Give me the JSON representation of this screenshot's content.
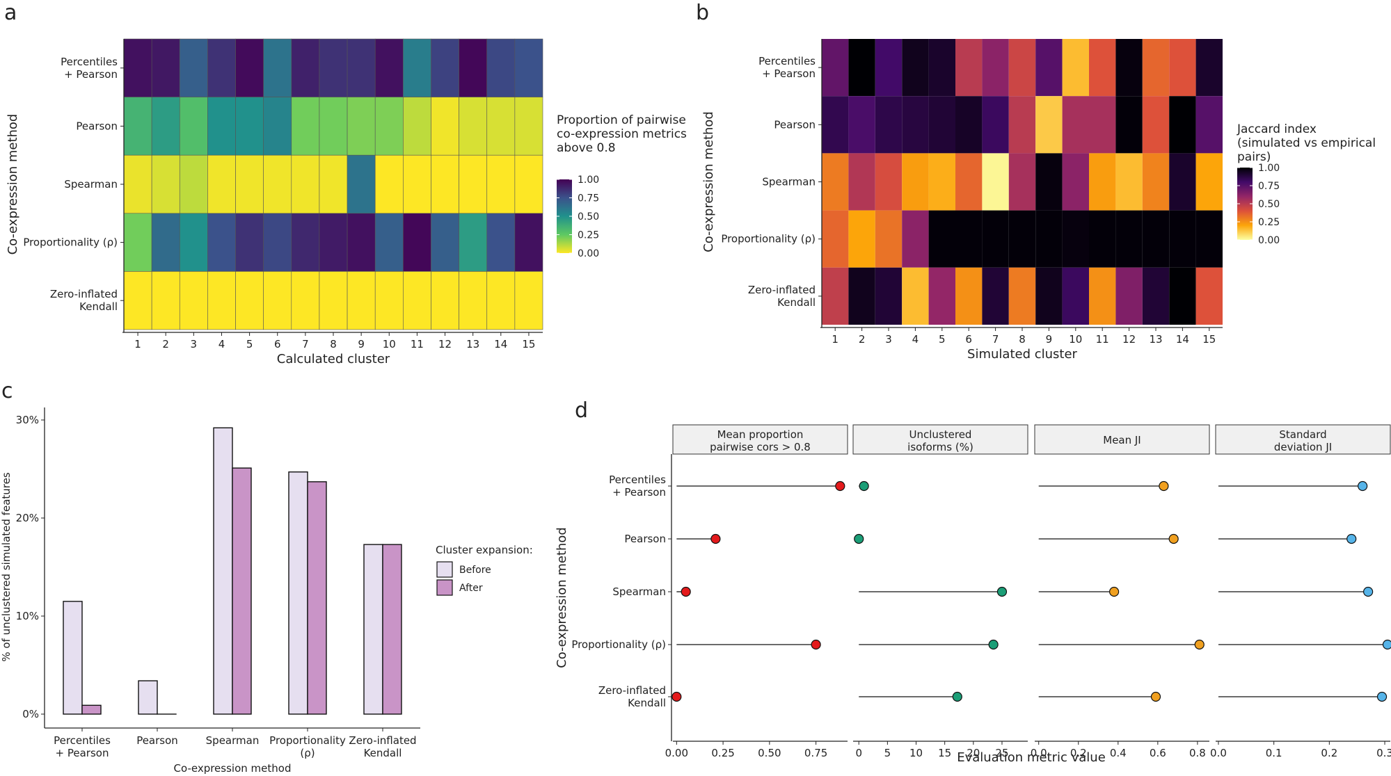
{
  "chart_data": [
    {
      "panel": "a",
      "type": "heatmap",
      "xlabel": "Calculated cluster",
      "ylabel": "Co-expression method",
      "x": [
        "1",
        "2",
        "3",
        "4",
        "5",
        "6",
        "7",
        "8",
        "9",
        "10",
        "11",
        "12",
        "13",
        "14",
        "15"
      ],
      "y": [
        "Percentiles\n+ Pearson",
        "Pearson",
        "Spearman",
        "Proportionality (ρ)",
        "Zero-inflated\nKendall"
      ],
      "values": [
        [
          0.95,
          0.93,
          0.7,
          0.85,
          0.97,
          0.62,
          0.9,
          0.85,
          0.85,
          0.95,
          0.58,
          0.8,
          0.98,
          0.78,
          0.75
        ],
        [
          0.35,
          0.45,
          0.3,
          0.5,
          0.5,
          0.55,
          0.22,
          0.22,
          0.2,
          0.2,
          0.1,
          0.02,
          0.06,
          0.06,
          0.06
        ],
        [
          0.03,
          0.06,
          0.1,
          0.02,
          0.02,
          0.02,
          0.02,
          0.02,
          0.62,
          0.0,
          0.0,
          0.0,
          0.0,
          0.0,
          0.0
        ],
        [
          0.22,
          0.65,
          0.5,
          0.75,
          0.85,
          0.78,
          0.88,
          0.92,
          0.95,
          0.7,
          0.98,
          0.7,
          0.45,
          0.75,
          0.95
        ],
        [
          0.0,
          0.0,
          0.0,
          0.0,
          0.0,
          0.0,
          0.0,
          0.0,
          0.0,
          0.0,
          0.0,
          0.0,
          0.0,
          0.0,
          0.0
        ]
      ],
      "legend": {
        "title": [
          "Proportion of pairwise",
          "co-expression metrics",
          "above 0.8"
        ],
        "ticks": [
          "1.00",
          "0.75",
          "0.50",
          "0.25",
          "0.00"
        ],
        "range": [
          0,
          1
        ],
        "colors": [
          "#fde725",
          "#5ec962",
          "#21918c",
          "#3b528b",
          "#440154"
        ]
      }
    },
    {
      "panel": "b",
      "type": "heatmap",
      "xlabel": "Simulated cluster",
      "ylabel": "Co-expression method",
      "x": [
        "1",
        "2",
        "3",
        "4",
        "5",
        "6",
        "7",
        "8",
        "9",
        "10",
        "11",
        "12",
        "13",
        "14",
        "15"
      ],
      "y": [
        "Percentiles\n+ Pearson",
        "Pearson",
        "Spearman",
        "Proportionality (ρ)",
        "Zero-inflated\nKendall"
      ],
      "values": [
        [
          0.72,
          1.0,
          0.8,
          0.95,
          0.92,
          0.5,
          0.62,
          0.45,
          0.75,
          0.15,
          0.4,
          0.98,
          0.35,
          0.4,
          0.92
        ],
        [
          0.85,
          0.78,
          0.86,
          0.88,
          0.9,
          0.93,
          0.82,
          0.5,
          0.12,
          0.55,
          0.55,
          0.99,
          0.4,
          1.0,
          0.75
        ],
        [
          0.3,
          0.52,
          0.42,
          0.22,
          0.18,
          0.35,
          0.02,
          0.55,
          0.98,
          0.62,
          0.22,
          0.15,
          0.28,
          0.92,
          0.2
        ],
        [
          0.35,
          0.2,
          0.32,
          0.62,
          0.99,
          0.99,
          0.99,
          0.99,
          0.99,
          0.98,
          0.99,
          0.99,
          0.99,
          0.99,
          0.99
        ],
        [
          0.48,
          0.95,
          0.9,
          0.15,
          0.6,
          0.25,
          0.9,
          0.3,
          0.95,
          0.82,
          0.25,
          0.65,
          0.9,
          1.0,
          0.4
        ]
      ],
      "legend": {
        "title": [
          "Jaccard index",
          "(simulated vs empirical",
          "pairs)"
        ],
        "ticks": [
          "1.00",
          "0.75",
          "0.50",
          "0.25",
          "0.00"
        ],
        "range": [
          0,
          1
        ],
        "colors": [
          "#fcffa4",
          "#fca50a",
          "#dd513a",
          "#932667",
          "#420a68",
          "#000004"
        ]
      }
    },
    {
      "panel": "c",
      "type": "bar",
      "xlabel": "Co-expression method",
      "ylabel": "% of unclustered simulated features",
      "categories": [
        "Percentiles\n+ Pearson",
        "Pearson",
        "Spearman",
        "Proportionality\n(ρ)",
        "Zero-inflated\nKendall"
      ],
      "series": [
        {
          "name": "Before",
          "color": "#e6dff0",
          "values": [
            11.5,
            3.4,
            29.2,
            24.7,
            17.3
          ]
        },
        {
          "name": "After",
          "color": "#c994c7",
          "values": [
            0.9,
            0.0,
            25.1,
            23.7,
            17.3
          ]
        }
      ],
      "ylim": [
        0,
        30
      ],
      "yticks": [
        0,
        10,
        20,
        30
      ],
      "ytick_labels": [
        "0%",
        "10%",
        "20%",
        "30%"
      ],
      "legend": {
        "title": "Cluster expansion:"
      }
    },
    {
      "panel": "d",
      "type": "scatter",
      "style": "lollipop",
      "xlabel": "Evaluation metric value",
      "ylabel": "Co-expression method",
      "methods": [
        "Percentiles\n+ Pearson",
        "Pearson",
        "Spearman",
        "Proportionality (ρ)",
        "Zero-inflated\nKendall"
      ],
      "facets": [
        {
          "title": "Mean proportion\npairwise cors > 0.8",
          "color": "#e41a1c",
          "xlim": [
            -0.02,
            0.92
          ],
          "ticks": [
            0,
            0.25,
            0.5,
            0.75
          ],
          "tick_labels": [
            "0.00",
            "0.25",
            "0.50",
            "0.75"
          ],
          "values": [
            0.88,
            0.21,
            0.05,
            0.75,
            0.0
          ]
        },
        {
          "title": "Unclustered\nisoforms (%)",
          "color": "#1b9e77",
          "xlim": [
            -1,
            29.5
          ],
          "ticks": [
            0,
            5,
            10,
            15,
            20,
            25
          ],
          "tick_labels": [
            "0",
            "5",
            "10",
            "15",
            "20",
            "25"
          ],
          "values": [
            0.9,
            0.0,
            25.0,
            23.5,
            17.2
          ]
        },
        {
          "title": "Mean JI",
          "color": "#f0a020",
          "xlim": [
            -0.02,
            0.86
          ],
          "ticks": [
            0,
            0.2,
            0.4,
            0.6,
            0.8
          ],
          "tick_labels": [
            "0.0",
            "0.2",
            "0.4",
            "0.6",
            "0.8"
          ],
          "values": [
            0.63,
            0.68,
            0.38,
            0.81,
            0.59
          ]
        },
        {
          "title": "Standard\ndeviation JI",
          "color": "#56b4e9",
          "xlim": [
            -0.005,
            0.31
          ],
          "ticks": [
            0,
            0.1,
            0.2,
            0.3
          ],
          "tick_labels": [
            "0.0",
            "0.1",
            "0.2",
            "0.3"
          ],
          "values": [
            0.26,
            0.24,
            0.27,
            0.305,
            0.295
          ]
        }
      ]
    }
  ],
  "panel_letters": {
    "a": "a",
    "b": "b",
    "c": "c",
    "d": "d"
  }
}
